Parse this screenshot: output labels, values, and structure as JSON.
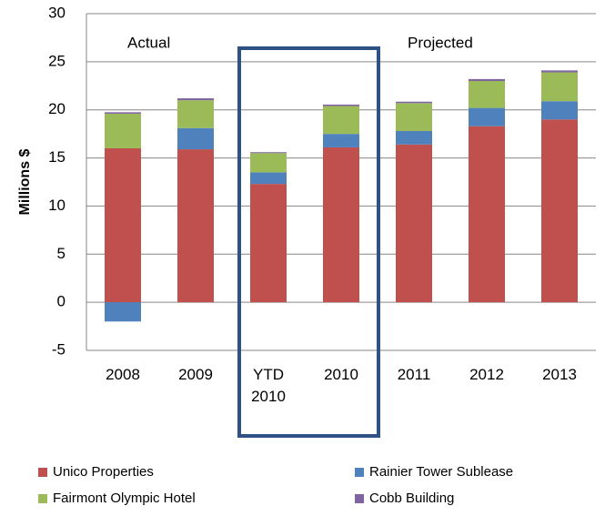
{
  "chart_data": {
    "type": "stacked_bar",
    "y_label": "Millions $",
    "annotations": [
      "Actual",
      "Projected"
    ],
    "categories": [
      "2008",
      "2009",
      "YTD 2010",
      "2010",
      "2011",
      "2012",
      "2013"
    ],
    "series": [
      {
        "name": "Unico Properties",
        "color": "#c0504d",
        "values": [
          16.0,
          15.9,
          12.3,
          16.1,
          16.4,
          18.3,
          19.0
        ]
      },
      {
        "name": "Rainier Tower Sublease",
        "color": "#4f81bd",
        "values": [
          -2.0,
          2.2,
          1.2,
          1.4,
          1.4,
          1.9,
          1.9
        ]
      },
      {
        "name": "Fairmont Olympic Hotel",
        "color": "#9bbb59",
        "values": [
          3.6,
          2.9,
          2.0,
          2.9,
          2.9,
          2.8,
          3.0
        ]
      },
      {
        "name": "Cobb Building",
        "color": "#8064a2",
        "values": [
          0.15,
          0.2,
          0.1,
          0.15,
          0.15,
          0.2,
          0.2
        ]
      }
    ],
    "ylim": [
      -5,
      30
    ],
    "yticks": [
      -5,
      0,
      5,
      10,
      15,
      20,
      25,
      30
    ],
    "grid": true
  }
}
